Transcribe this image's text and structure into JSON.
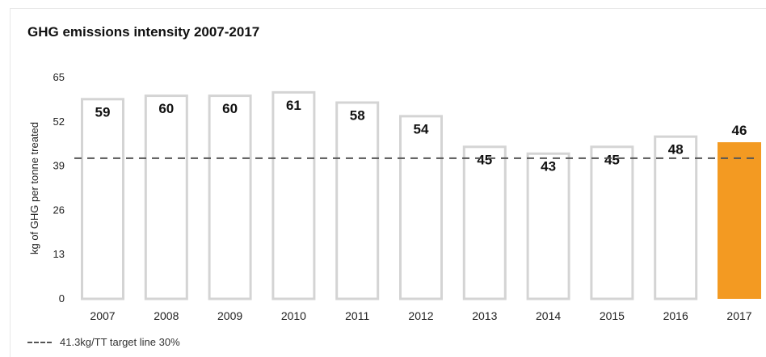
{
  "title": "GHG emissions intensity 2007-2017",
  "legend": {
    "target_label": "41.3kg/TT target line 30%"
  },
  "colors": {
    "bar_outline": "#d4d4d4",
    "bar_highlight": "#f39a22",
    "target_line": "#555555",
    "axis_text": "#222222",
    "label_text": "#111111"
  },
  "chart_data": {
    "type": "bar",
    "title": "GHG emissions intensity 2007-2017",
    "xlabel": "",
    "ylabel": "kg of GHG per tonne treated",
    "categories": [
      "2007",
      "2008",
      "2009",
      "2010",
      "2011",
      "2012",
      "2013",
      "2014",
      "2015",
      "2016",
      "2017"
    ],
    "values": [
      59,
      60,
      60,
      61,
      58,
      54,
      45,
      43,
      45,
      48,
      46
    ],
    "ylim": [
      0,
      65
    ],
    "yticks": [
      0,
      13,
      26,
      39,
      52,
      65
    ],
    "highlight_category": "2017",
    "target_line": {
      "value": 41.3,
      "label": "41.3kg/TT target line 30%"
    },
    "grid": false,
    "legend_position": "bottom-left"
  }
}
